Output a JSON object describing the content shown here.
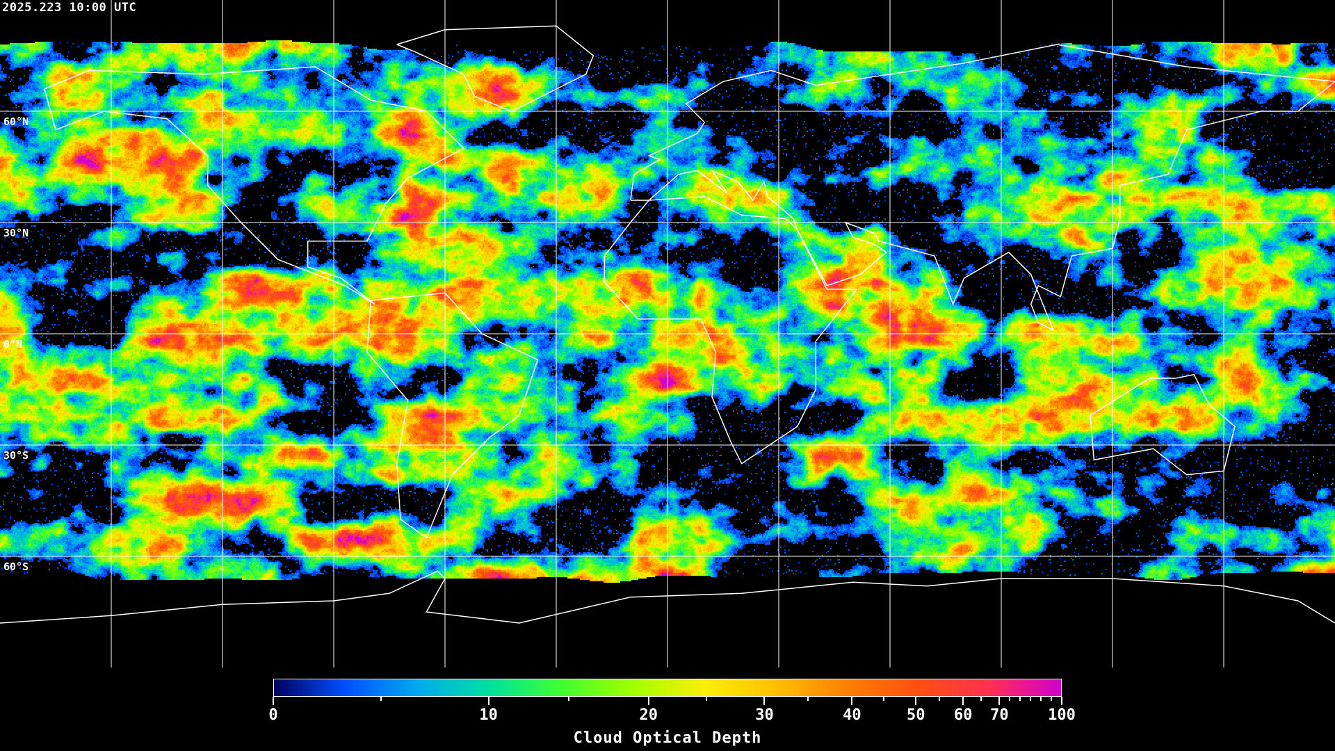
{
  "header": {
    "timestamp": "2025.223 10:00 UTC"
  },
  "map": {
    "projection": "equirectangular",
    "lat_labels": [
      "60°N",
      "30°N",
      "0°N",
      "30°S",
      "60°S"
    ],
    "grid_color": "#ffffff",
    "coastline_color": "#ffffff",
    "no_data_color": "#000000"
  },
  "colorbar": {
    "title": "Cloud Optical Depth",
    "min": 0,
    "max": 100,
    "major_ticks": [
      "0",
      "10",
      "20",
      "30",
      "40",
      "50",
      "60",
      "70",
      "100"
    ],
    "minor_ticks": [
      5,
      15,
      25,
      35,
      45,
      55,
      65,
      75,
      80,
      85,
      90,
      95
    ],
    "colors": [
      "#000060",
      "#0050ff",
      "#00a8f0",
      "#00e0a0",
      "#40ff30",
      "#a0ff00",
      "#f8f000",
      "#ffc000",
      "#ff8000",
      "#ff5010",
      "#ff3050",
      "#d000d0"
    ]
  }
}
